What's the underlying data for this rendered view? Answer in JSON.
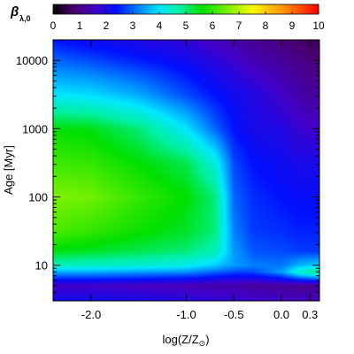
{
  "chart_data": {
    "type": "heatmap",
    "colorbar": {
      "label": "β",
      "label_subscript": "λ,0",
      "ticks": [
        "0",
        "1",
        "2",
        "3",
        "4",
        "5",
        "6",
        "7",
        "8",
        "9",
        "10"
      ],
      "range": [
        0,
        10
      ],
      "colormap": "rainbow (black-purple-blue-cyan-green-yellow-red)"
    },
    "xlabel": "log(Z/Z",
    "xlabel_sub": "⊙",
    "xlabel_close": ")",
    "ylabel": "Age [Myr]",
    "x_ticks": [
      {
        "value": -2.0,
        "label": "-2.0"
      },
      {
        "value": -1.0,
        "label": "-1.0"
      },
      {
        "value": -0.5,
        "label": "-0.5"
      },
      {
        "value": 0.0,
        "label": "0.0"
      },
      {
        "value": 0.3,
        "label": "0.3"
      }
    ],
    "y_ticks": [
      {
        "value": 10,
        "label": "10"
      },
      {
        "value": 100,
        "label": "100"
      },
      {
        "value": 1000,
        "label": "1000"
      },
      {
        "value": 10000,
        "label": "10000"
      }
    ],
    "xlim": [
      -2.4,
      0.4
    ],
    "ylim": [
      3,
      20000
    ],
    "yscale": "log",
    "grid": false,
    "z_description": "beta value over metallicity (x) and age (y)",
    "x_nodes": [
      -2.4,
      -2.0,
      -1.5,
      -1.0,
      -0.7,
      -0.5,
      -0.3,
      0.0,
      0.2,
      0.4
    ],
    "logy_nodes": [
      0.48,
      0.7,
      0.9,
      1.0,
      1.2,
      1.5,
      2.0,
      2.5,
      3.0,
      3.5,
      4.0,
      4.3
    ],
    "z_grid": [
      [
        2.2,
        2.2,
        2.1,
        2.0,
        1.9,
        1.8,
        1.7,
        1.6,
        1.5,
        1.5
      ],
      [
        1.6,
        1.6,
        1.5,
        1.4,
        1.3,
        1.3,
        1.2,
        1.2,
        1.1,
        1.1
      ],
      [
        3.5,
        3.5,
        3.4,
        3.3,
        3.0,
        2.8,
        2.8,
        3.4,
        4.5,
        5.0
      ],
      [
        4.6,
        4.5,
        4.4,
        4.2,
        3.8,
        3.4,
        3.2,
        3.1,
        3.6,
        3.8
      ],
      [
        5.5,
        5.4,
        5.2,
        5.0,
        4.6,
        3.4,
        2.9,
        2.8,
        2.7,
        2.7
      ],
      [
        6.2,
        6.0,
        5.7,
        5.4,
        5.0,
        3.2,
        2.7,
        2.6,
        2.5,
        2.5
      ],
      [
        6.6,
        6.5,
        6.0,
        5.6,
        5.0,
        3.0,
        2.6,
        2.4,
        2.3,
        2.3
      ],
      [
        6.1,
        6.0,
        5.6,
        5.2,
        4.3,
        2.8,
        2.4,
        2.2,
        2.1,
        2.1
      ],
      [
        5.6,
        5.5,
        5.0,
        4.0,
        3.0,
        2.4,
        2.1,
        2.0,
        1.7,
        1.6
      ],
      [
        4.0,
        3.9,
        3.5,
        2.8,
        2.4,
        2.2,
        2.0,
        1.6,
        1.3,
        1.2
      ],
      [
        3.0,
        2.8,
        2.5,
        2.2,
        1.9,
        1.7,
        1.4,
        1.2,
        1.0,
        0.9
      ],
      [
        2.4,
        2.2,
        2.0,
        1.8,
        1.5,
        1.3,
        1.1,
        0.9,
        0.7,
        0.6
      ]
    ]
  }
}
